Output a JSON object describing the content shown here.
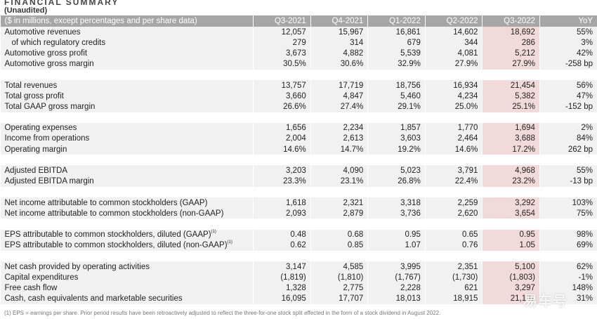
{
  "title": "FINANCIAL SUMMARY",
  "subtitle": "(Unaudited)",
  "table": {
    "header_label": "($ in millions, except percentages and per share data)",
    "columns": [
      "Q3-2021",
      "Q4-2021",
      "Q1-2022",
      "Q2-2022",
      "Q3-2022",
      "YoY"
    ],
    "rows": [
      {
        "label": "Automotive revenues",
        "values": [
          "12,057",
          "15,967",
          "16,861",
          "14,602",
          "18,692",
          "55%"
        ]
      },
      {
        "label": "of which regulatory credits",
        "indent": true,
        "values": [
          "279",
          "314",
          "679",
          "344",
          "286",
          "3%"
        ]
      },
      {
        "label": "Automotive gross profit",
        "values": [
          "3,673",
          "4,882",
          "5,539",
          "4,081",
          "5,212",
          "42%"
        ]
      },
      {
        "label": "Automotive gross margin",
        "values": [
          "30.5%",
          "30.6%",
          "32.9%",
          "27.9%",
          "27.9%",
          "-258 bp"
        ]
      },
      {
        "gap": true
      },
      {
        "label": "Total revenues",
        "values": [
          "13,757",
          "17,719",
          "18,756",
          "16,934",
          "21,454",
          "56%"
        ]
      },
      {
        "label": "Total gross profit",
        "values": [
          "3,660",
          "4,847",
          "5,460",
          "4,234",
          "5,382",
          "47%"
        ]
      },
      {
        "label": "Total GAAP gross margin",
        "values": [
          "26.6%",
          "27.4%",
          "29.1%",
          "25.0%",
          "25.1%",
          "-152 bp"
        ]
      },
      {
        "gap": true
      },
      {
        "label": "Operating expenses",
        "values": [
          "1,656",
          "2,234",
          "1,857",
          "1,770",
          "1,694",
          "2%"
        ]
      },
      {
        "label": "Income from operations",
        "values": [
          "2,004",
          "2,613",
          "3,603",
          "2,464",
          "3,688",
          "84%"
        ]
      },
      {
        "label": "Operating margin",
        "values": [
          "14.6%",
          "14.7%",
          "19.2%",
          "14.6%",
          "17.2%",
          "262 bp"
        ]
      },
      {
        "gap": true
      },
      {
        "label": "Adjusted EBITDA",
        "values": [
          "3,203",
          "4,090",
          "5,023",
          "3,791",
          "4,968",
          "55%"
        ]
      },
      {
        "label": "Adjusted EBITDA margin",
        "values": [
          "23.3%",
          "23.1%",
          "26.8%",
          "22.4%",
          "23.2%",
          "-13 bp"
        ]
      },
      {
        "gap": true
      },
      {
        "label": "Net income attributable to common stockholders (GAAP)",
        "values": [
          "1,618",
          "2,321",
          "3,318",
          "2,259",
          "3,292",
          "103%"
        ]
      },
      {
        "label": "Net income attributable to common stockholders (non-GAAP)",
        "values": [
          "2,093",
          "2,879",
          "3,736",
          "2,620",
          "3,654",
          "75%"
        ]
      },
      {
        "gap": true
      },
      {
        "label": "EPS attributable to common stockholders, diluted (GAAP)",
        "note": "(1)",
        "values": [
          "0.48",
          "0.68",
          "0.95",
          "0.65",
          "0.95",
          "98%"
        ]
      },
      {
        "label": "EPS attributable to common stockholders, diluted (non-GAAP)",
        "note": "(1)",
        "values": [
          "0.62",
          "0.85",
          "1.07",
          "0.76",
          "1.05",
          "69%"
        ]
      },
      {
        "gap": true
      },
      {
        "label": "Net cash provided by operating activities",
        "values": [
          "3,147",
          "4,585",
          "3,995",
          "2,351",
          "5,100",
          "62%"
        ]
      },
      {
        "label": "Capital expenditures",
        "values": [
          "(1,819)",
          "(1,810)",
          "(1,767)",
          "(1,730)",
          "(1,803)",
          "-1%"
        ]
      },
      {
        "label": "Free cash flow",
        "values": [
          "1,328",
          "2,775",
          "2,228",
          "621",
          "3,297",
          "148%"
        ]
      },
      {
        "label": "Cash, cash equivalents and marketable securities",
        "values": [
          "16,095",
          "17,707",
          "18,013",
          "18,915",
          "21,107",
          "31%"
        ]
      }
    ]
  },
  "footnote": "(1) EPS = earnings per share. Prior period results have been retroactively adjusted to reflect the three-for-one stock split effected in the form of a stock dividend in August 2022.",
  "watermark": "易车号",
  "colors": {
    "header_bg": "#a6a6a6",
    "row_bg": "#f1f1f1",
    "highlight_bg": "#f2dada"
  }
}
